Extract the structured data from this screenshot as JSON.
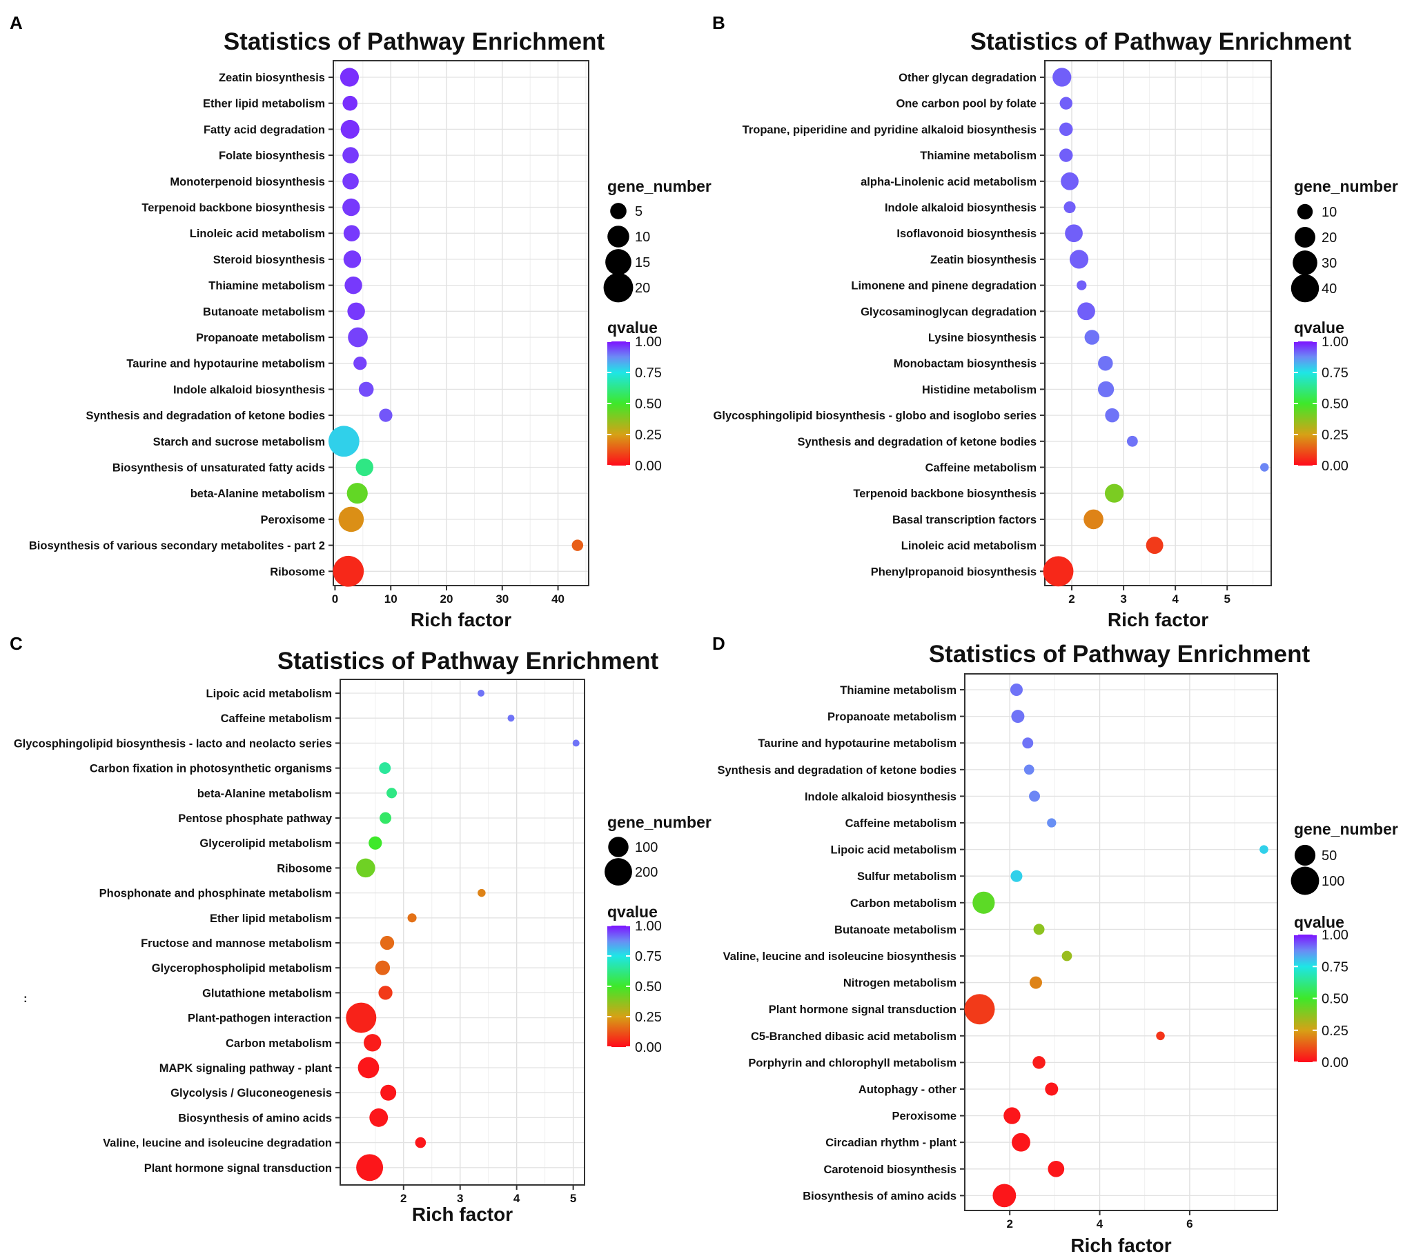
{
  "chart_data": [
    {
      "panel_label": "A",
      "type": "scatter",
      "title": "Statistics of Pathway Enrichment",
      "xlabel": "Rich factor",
      "xlim": [
        -0.3,
        45.5
      ],
      "xticks": [
        0,
        10,
        20,
        30,
        40
      ],
      "categories": [
        "Zeatin biosynthesis",
        "Ether lipid metabolism",
        "Fatty acid degradation",
        "Folate biosynthesis",
        "Monoterpenoid biosynthesis",
        "Terpenoid backbone biosynthesis",
        "Linoleic acid metabolism",
        "Steroid biosynthesis",
        "Thiamine metabolism",
        "Butanoate metabolism",
        "Propanoate metabolism",
        "Taurine and hypotaurine metabolism",
        "Indole alkaloid biosynthesis",
        "Synthesis and degradation of ketone bodies",
        "Starch and sucrose metabolism",
        "Biosynthesis of unsaturated fatty acids",
        "beta-Alanine metabolism",
        "Peroxisome",
        "Biosynthesis of various secondary metabolites - part 2",
        "Ribosome"
      ],
      "x": [
        2.6,
        2.7,
        2.7,
        2.8,
        2.8,
        2.9,
        3.0,
        3.1,
        3.3,
        3.8,
        4.1,
        4.5,
        5.6,
        9.1,
        1.6,
        5.3,
        4.0,
        2.9,
        43.5,
        2.4
      ],
      "gene_number": [
        7,
        4,
        7,
        5,
        5,
        6,
        5,
        6,
        6,
        6,
        8,
        3,
        4,
        3,
        22,
        6,
        9,
        14,
        2,
        22
      ],
      "qvalue": [
        0.97,
        0.97,
        0.97,
        0.96,
        0.96,
        0.96,
        0.96,
        0.96,
        0.96,
        0.96,
        0.95,
        0.95,
        0.94,
        0.93,
        0.78,
        0.62,
        0.44,
        0.22,
        0.14,
        0.05
      ],
      "size_legend": {
        "title": "gene_number",
        "values": [
          5,
          10,
          15,
          20
        ],
        "labels": [
          "5",
          "10",
          "15",
          "20"
        ]
      },
      "color_legend": {
        "title": "qvalue",
        "ticks": [
          "1.00",
          "0.75",
          "0.50",
          "0.25",
          "0.00"
        ]
      }
    },
    {
      "panel_label": "B",
      "type": "scatter",
      "title": "Statistics of Pathway Enrichment",
      "xlabel": "Rich factor",
      "xlim": [
        1.48,
        5.85
      ],
      "xticks": [
        2,
        3,
        4,
        5
      ],
      "categories": [
        "Other glycan degradation",
        "One carbon pool by folate",
        "Tropane, piperidine and pyridine alkaloid biosynthesis",
        "Thiamine metabolism",
        "alpha-Linolenic acid metabolism",
        "Indole alkaloid biosynthesis",
        "Isoflavonoid biosynthesis",
        "Zeatin biosynthesis",
        "Limonene and pinene degradation",
        "Glycosaminoglycan degradation",
        "Lysine biosynthesis",
        "Monobactam biosynthesis",
        "Histidine metabolism",
        "Glycosphingolipid biosynthesis - globo and isoglobo series",
        "Synthesis and degradation of ketone bodies",
        "Caffeine metabolism",
        "Terpenoid backbone biosynthesis",
        "Basal transcription factors",
        "Linoleic acid metabolism",
        "Phenylpropanoid biosynthesis"
      ],
      "x": [
        1.81,
        1.89,
        1.89,
        1.89,
        1.96,
        1.96,
        2.04,
        2.14,
        2.19,
        2.28,
        2.39,
        2.65,
        2.66,
        2.78,
        3.17,
        5.72,
        2.82,
        2.42,
        3.6,
        1.74
      ],
      "gene_number": [
        16,
        6,
        7,
        7,
        14,
        5,
        14,
        16,
        3,
        14,
        9,
        9,
        11,
        8,
        4,
        2,
        16,
        18,
        13,
        48
      ],
      "qvalue": [
        0.92,
        0.92,
        0.92,
        0.92,
        0.92,
        0.92,
        0.92,
        0.92,
        0.92,
        0.92,
        0.9,
        0.9,
        0.9,
        0.9,
        0.9,
        0.88,
        0.4,
        0.2,
        0.08,
        0.05
      ],
      "size_legend": {
        "title": "gene_number",
        "values": [
          10,
          20,
          30,
          40
        ],
        "labels": [
          "10",
          "20",
          "30",
          "40"
        ]
      },
      "color_legend": {
        "title": "qvalue",
        "ticks": [
          "1.00",
          "0.75",
          "0.50",
          "0.25",
          "0.00"
        ]
      }
    },
    {
      "panel_label": "C",
      "type": "scatter",
      "title": "Statistics of Pathway Enrichment",
      "xlabel": "Rich factor",
      "xlim": [
        0.88,
        5.2
      ],
      "xticks": [
        2,
        3,
        4,
        5
      ],
      "categories": [
        "Lipoic acid metabolism",
        "Caffeine metabolism",
        "Glycosphingolipid biosynthesis - lacto and neolacto series",
        "Carbon fixation in photosynthetic organisms",
        "beta-Alanine metabolism",
        "Pentose phosphate pathway",
        "Glycerolipid metabolism",
        "Ribosome",
        "Phosphonate and phosphinate metabolism",
        "Ether lipid metabolism",
        "Fructose and mannose metabolism",
        "Glycerophospholipid metabolism",
        "Glutathione metabolism",
        "Plant-pathogen interaction",
        "Carbon metabolism",
        "MAPK signaling pathway - plant",
        "Glycolysis / Gluconeogenesis",
        "Biosynthesis of amino acids",
        "Valine, leucine and isoleucine degradation",
        "Plant hormone signal transduction"
      ],
      "x": [
        3.37,
        3.9,
        5.05,
        1.67,
        1.79,
        1.68,
        1.5,
        1.33,
        3.38,
        2.15,
        1.71,
        1.63,
        1.68,
        1.25,
        1.45,
        1.38,
        1.73,
        1.56,
        2.3,
        1.4
      ],
      "gene_number": [
        5,
        5,
        5,
        25,
        18,
        25,
        35,
        85,
        8,
        12,
        40,
        45,
        40,
        255,
        70,
        110,
        55,
        80,
        20,
        190
      ],
      "qvalue": [
        0.9,
        0.9,
        0.9,
        0.65,
        0.62,
        0.58,
        0.5,
        0.42,
        0.2,
        0.17,
        0.16,
        0.15,
        0.08,
        0.04,
        0.03,
        0.02,
        0.02,
        0.02,
        0.02,
        0.02
      ],
      "size_legend": {
        "title": "gene_number",
        "values": [
          100,
          200
        ],
        "labels": [
          "100",
          "200"
        ]
      },
      "color_legend": {
        "title": "qvalue",
        "ticks": [
          "1.00",
          "0.75",
          "0.50",
          "0.25",
          "0.00"
        ]
      }
    },
    {
      "panel_label": "D",
      "type": "scatter",
      "title": "Statistics of Pathway Enrichment",
      "xlabel": "Rich factor",
      "xlim": [
        1.0,
        7.95
      ],
      "xticks": [
        2,
        4,
        6
      ],
      "categories": [
        "Thiamine metabolism",
        "Propanoate metabolism",
        "Taurine and hypotaurine metabolism",
        "Synthesis and degradation of ketone bodies",
        "Indole alkaloid biosynthesis",
        "Caffeine metabolism",
        "Lipoic acid metabolism",
        "Sulfur metabolism",
        "Carbon metabolism",
        "Butanoate metabolism",
        "Valine, leucine and isoleucine biosynthesis",
        "Nitrogen metabolism",
        "Plant hormone signal transduction",
        "C5-Branched dibasic acid metabolism",
        "Porphyrin and chlorophyll metabolism",
        "Autophagy - other",
        "Peroxisome",
        "Circadian rhythm - plant",
        "Carotenoid biosynthesis",
        "Biosynthesis of amino acids"
      ],
      "x": [
        2.15,
        2.18,
        2.4,
        2.43,
        2.55,
        2.93,
        7.65,
        2.15,
        1.42,
        2.65,
        3.27,
        2.58,
        1.33,
        5.35,
        2.65,
        2.93,
        2.05,
        2.25,
        3.03,
        1.88
      ],
      "gene_number": [
        14,
        16,
        10,
        8,
        10,
        6,
        5,
        12,
        58,
        10,
        8,
        14,
        120,
        5,
        15,
        16,
        30,
        38,
        28,
        65
      ],
      "qvalue": [
        0.9,
        0.9,
        0.9,
        0.88,
        0.88,
        0.87,
        0.78,
        0.78,
        0.45,
        0.37,
        0.35,
        0.2,
        0.08,
        0.07,
        0.03,
        0.02,
        0.02,
        0.02,
        0.02,
        0.02
      ],
      "size_legend": {
        "title": "gene_number",
        "values": [
          50,
          100
        ],
        "labels": [
          "50",
          "100"
        ]
      },
      "color_legend": {
        "title": "qvalue",
        "ticks": [
          "1.00",
          "0.75",
          "0.50",
          "0.25",
          "0.00"
        ]
      }
    }
  ],
  "stray_mark": ":"
}
